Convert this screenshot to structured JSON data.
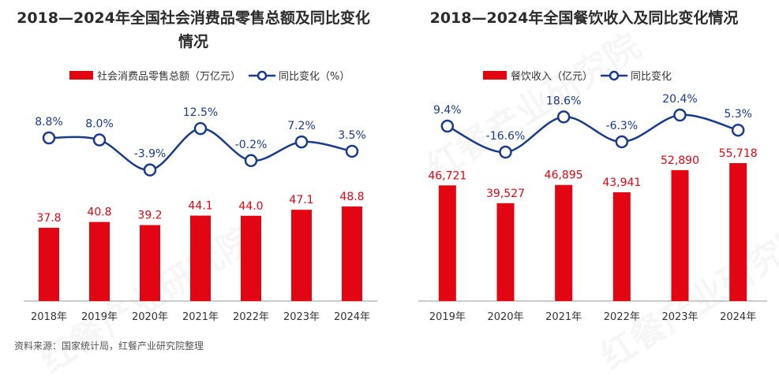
{
  "source_note": "资料来源：国家统计局，红餐产业研究院整理",
  "watermark": "红餐产业研究院",
  "colors": {
    "bar": "#e20512",
    "line": "#1a3a8c",
    "axis": "#999999",
    "value_bar": "#e20512",
    "value_line": "#1a3a8c"
  },
  "chart_data": [
    {
      "type": "bar",
      "title": "2018—2024年全国社会消费品零售总额及同比变化情况",
      "categories": [
        "2018年",
        "2019年",
        "2020年",
        "2021年",
        "2022年",
        "2023年",
        "2024年"
      ],
      "series": [
        {
          "name": "社会消费品零售总额（万亿元）",
          "type": "bar",
          "values": [
            37.8,
            40.8,
            39.2,
            44.1,
            44.0,
            47.1,
            48.8
          ],
          "labels": [
            "37.8",
            "40.8",
            "39.2",
            "44.1",
            "44.0",
            "47.1",
            "48.8"
          ]
        },
        {
          "name": "同比变化（%）",
          "type": "line",
          "values": [
            8.8,
            8.0,
            -3.9,
            12.5,
            -0.2,
            7.2,
            3.5
          ],
          "labels": [
            "8.8%",
            "8.0%",
            "-3.9%",
            "12.5%",
            "-0.2%",
            "7.2%",
            "3.5%"
          ]
        }
      ],
      "legend_position": "top"
    },
    {
      "type": "bar",
      "title": "2018—2024年全国餐饮收入及同比变化情况",
      "categories": [
        "2019年",
        "2020年",
        "2021年",
        "2022年",
        "2023年",
        "2024年"
      ],
      "series": [
        {
          "name": "餐饮收入（亿元）",
          "type": "bar",
          "values": [
            46721,
            39527,
            46895,
            43941,
            52890,
            55718
          ],
          "labels": [
            "46,721",
            "39,527",
            "46,895",
            "43,941",
            "52,890",
            "55,718"
          ]
        },
        {
          "name": "同比变化",
          "type": "line",
          "values": [
            9.4,
            -16.6,
            18.6,
            -6.3,
            20.4,
            5.3
          ],
          "labels": [
            "9.4%",
            "-16.6%",
            "18.6%",
            "-6.3%",
            "20.4%",
            "5.3%"
          ]
        }
      ],
      "legend_position": "top"
    }
  ]
}
